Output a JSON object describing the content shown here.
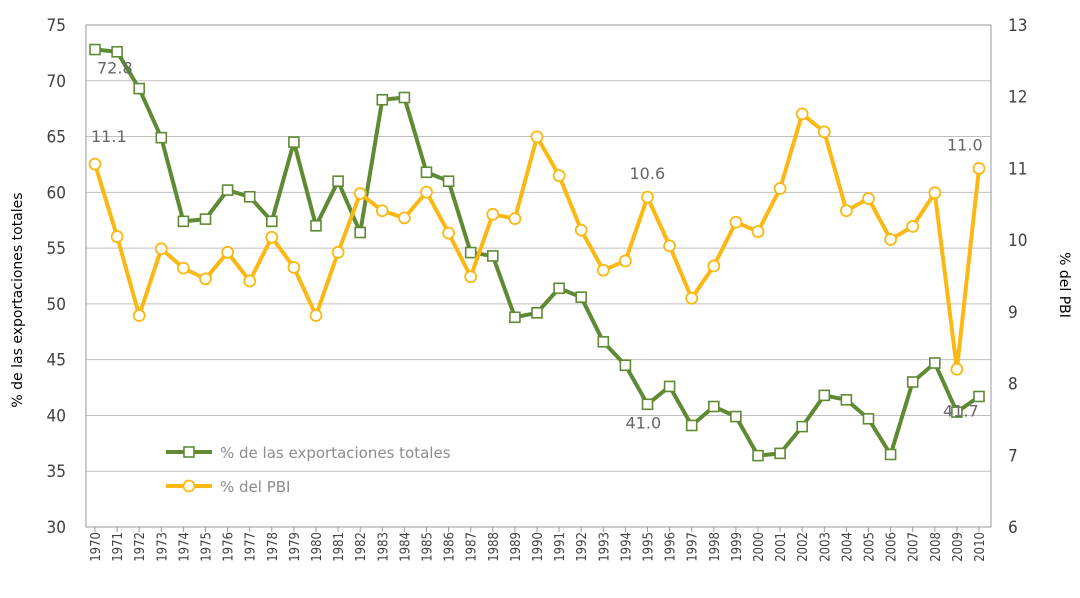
{
  "chart_data": {
    "type": "line",
    "x": [
      1970,
      1971,
      1972,
      1973,
      1974,
      1975,
      1976,
      1977,
      1978,
      1979,
      1980,
      1981,
      1982,
      1983,
      1984,
      1985,
      1986,
      1987,
      1988,
      1989,
      1990,
      1991,
      1992,
      1993,
      1994,
      1995,
      1996,
      1997,
      1998,
      1999,
      2000,
      2001,
      2002,
      2003,
      2004,
      2005,
      2006,
      2007,
      2008,
      2009,
      2010
    ],
    "x_tick_labels": [
      "1970",
      "1971",
      "1972",
      "1973",
      "1974",
      "1975",
      "1976",
      "1977",
      "1978",
      "1979",
      "1980",
      "1981",
      "1982",
      "1983",
      "1984",
      "1985",
      "1986",
      "1987",
      "1988",
      "1989",
      "1990",
      "1991",
      "1992",
      "1993",
      "1994",
      "1995",
      "1996",
      "1997",
      "1998",
      "1999",
      "2000",
      "2001",
      "2002",
      "2003",
      "2004",
      "2005",
      "2006",
      "2007",
      "2008",
      "2009",
      "2010"
    ],
    "xlabel": "",
    "ylabel": "% de las exportaciones totales",
    "ylim": [
      30,
      75
    ],
    "y_ticks": [
      "30",
      "35",
      "40",
      "45",
      "50",
      "55",
      "60",
      "65",
      "70",
      "75"
    ],
    "y2label": "% del PBI",
    "y2lim": [
      6,
      13
    ],
    "y2_ticks": [
      "6",
      "7",
      "8",
      "9",
      "10",
      "11",
      "12",
      "13"
    ],
    "grid": "horizontal",
    "legend_position": "bottom-left",
    "series": [
      {
        "name": "% de las exportaciones totales",
        "axis": "left",
        "marker": "square",
        "color": "#5f8a33",
        "values": [
          72.8,
          72.6,
          69.3,
          64.9,
          57.4,
          57.6,
          60.2,
          59.6,
          57.4,
          64.5,
          57.0,
          61.0,
          56.4,
          68.3,
          68.5,
          61.8,
          61.0,
          54.6,
          54.3,
          48.8,
          49.2,
          51.4,
          50.6,
          46.6,
          44.5,
          41.0,
          42.6,
          39.1,
          40.8,
          39.9,
          36.4,
          36.6,
          39.0,
          41.8,
          41.4,
          39.7,
          36.5,
          43.0,
          44.7,
          40.3,
          41.7
        ]
      },
      {
        "name": "% del PBI",
        "axis": "right",
        "marker": "circle",
        "color": "#fbb813",
        "values": [
          11.06,
          10.05,
          8.95,
          9.88,
          9.61,
          9.46,
          9.83,
          9.43,
          10.04,
          9.62,
          8.95,
          9.83,
          10.65,
          10.41,
          10.31,
          10.67,
          10.1,
          9.49,
          10.36,
          10.3,
          11.44,
          10.9,
          10.14,
          9.58,
          9.71,
          10.6,
          9.92,
          9.19,
          9.64,
          10.25,
          10.12,
          10.72,
          11.76,
          11.51,
          10.41,
          10.58,
          10.01,
          10.19,
          10.66,
          8.2,
          11.0
        ]
      }
    ],
    "annotations": [
      {
        "series": 0,
        "x": 1970,
        "text": "72.8"
      },
      {
        "series": 0,
        "x": 1995,
        "text": "41.0"
      },
      {
        "series": 0,
        "x": 2010,
        "text": "41.7"
      },
      {
        "series": 1,
        "x": 1970,
        "text": "11.1"
      },
      {
        "series": 1,
        "x": 1995,
        "text": "10.6"
      },
      {
        "series": 1,
        "x": 2010,
        "text": "11.0"
      }
    ]
  }
}
